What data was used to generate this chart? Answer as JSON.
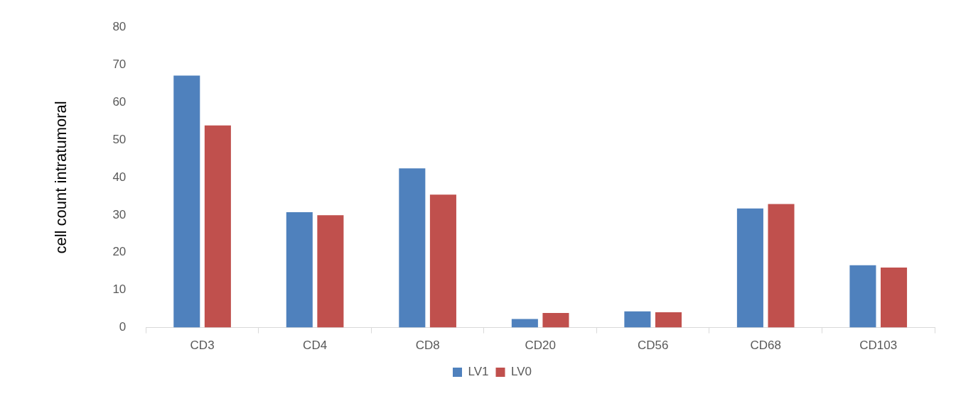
{
  "chart_data": {
    "type": "bar",
    "ylabel": "cell count intratumoral",
    "categories": [
      "CD3",
      "CD4",
      "CD8",
      "CD20",
      "CD56",
      "CD68",
      "CD103"
    ],
    "series": [
      {
        "name": "LV1",
        "color": "#4f81bd",
        "values": [
          67.1,
          30.7,
          42.4,
          2.3,
          4.3,
          31.7,
          16.6
        ]
      },
      {
        "name": "LV0",
        "color": "#c0504d",
        "values": [
          53.8,
          29.9,
          35.4,
          3.9,
          4.1,
          32.9,
          16.0
        ]
      }
    ],
    "ylim": [
      0,
      80
    ],
    "yticks": [
      0,
      10,
      20,
      30,
      40,
      50,
      60,
      70,
      80
    ],
    "grid": false,
    "legend": "bottom"
  }
}
